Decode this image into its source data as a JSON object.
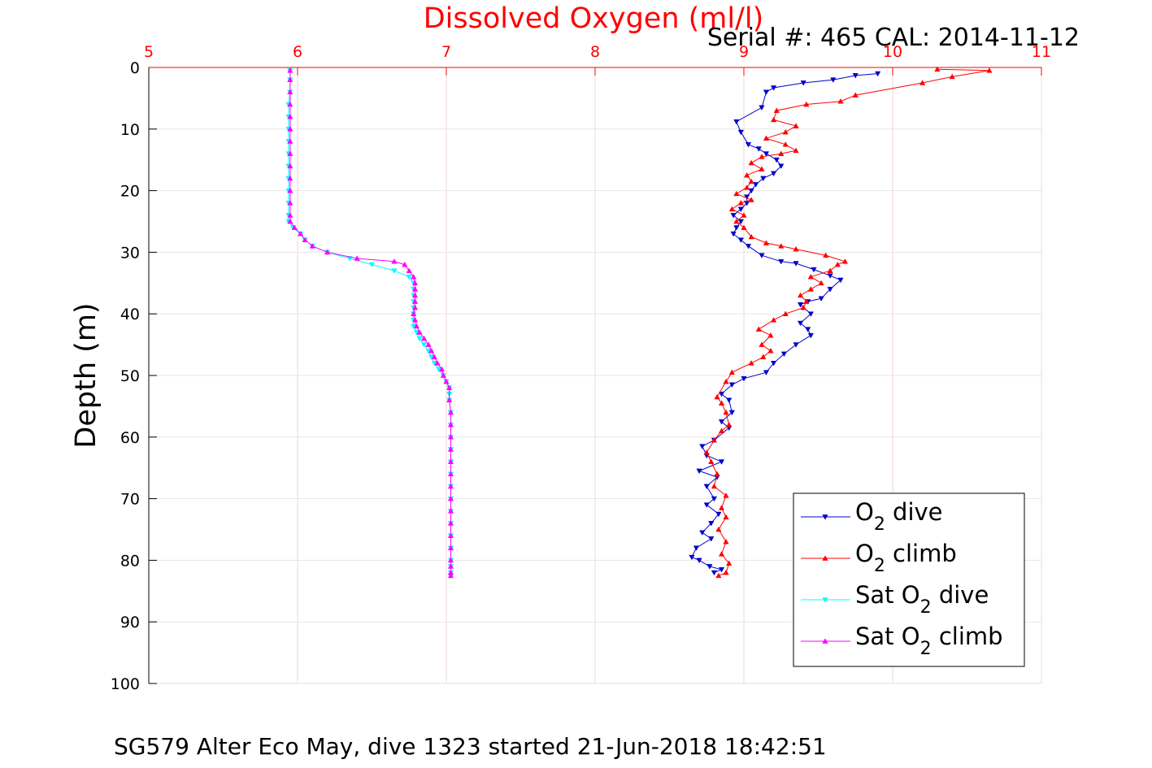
{
  "chart_data": {
    "type": "line",
    "title": "Dissolved Oxygen (ml/l)",
    "subtitle": "Serial #: 465  CAL: 2014-11-12",
    "caption": "SG579 Alter Eco May, dive 1323 started 21-Jun-2018 18:42:51",
    "ylabel": "Depth (m)",
    "xlim": [
      5,
      11
    ],
    "ylim": [
      0,
      100
    ],
    "y_reversed": true,
    "x_axis_position": "top",
    "x_ticks": [
      "5",
      "6",
      "7",
      "8",
      "9",
      "10",
      "11"
    ],
    "y_ticks": [
      "0",
      "10",
      "20",
      "30",
      "40",
      "50",
      "60",
      "70",
      "80",
      "90",
      "100"
    ],
    "grid": true,
    "legend_position": "bottom-right",
    "colors": {
      "axis_x": "#ff0000",
      "title": "#ff0000",
      "grid": "#e6e6e6",
      "text": "#000000"
    },
    "series": [
      {
        "name": "O2 dive",
        "legend_main": "O",
        "legend_sub": "2",
        "legend_prefix": "",
        "legend_suffix": " dive",
        "color": "#0000cc",
        "marker": "down",
        "points": [
          [
            9.9,
            1
          ],
          [
            9.75,
            1.3
          ],
          [
            9.6,
            2
          ],
          [
            9.4,
            2.5
          ],
          [
            9.2,
            3.3
          ],
          [
            9.15,
            4
          ],
          [
            9.12,
            6.5
          ],
          [
            8.95,
            8.8
          ],
          [
            8.98,
            10.5
          ],
          [
            9.03,
            12.5
          ],
          [
            9.1,
            13.2
          ],
          [
            9.15,
            14
          ],
          [
            9.22,
            15
          ],
          [
            9.25,
            16
          ],
          [
            9.2,
            17.2
          ],
          [
            9.13,
            18
          ],
          [
            9.08,
            19
          ],
          [
            9.05,
            20
          ],
          [
            9.02,
            21
          ],
          [
            9.02,
            22
          ],
          [
            8.98,
            23
          ],
          [
            8.93,
            24
          ],
          [
            8.98,
            25
          ],
          [
            8.95,
            26
          ],
          [
            8.93,
            27
          ],
          [
            8.98,
            28
          ],
          [
            9.03,
            29
          ],
          [
            9.12,
            30.5
          ],
          [
            9.25,
            31.5
          ],
          [
            9.35,
            31.8
          ],
          [
            9.47,
            32.8
          ],
          [
            9.58,
            33.8
          ],
          [
            9.65,
            34.5
          ],
          [
            9.58,
            36
          ],
          [
            9.52,
            37.5
          ],
          [
            9.43,
            38
          ],
          [
            9.38,
            38.5
          ],
          [
            9.45,
            40
          ],
          [
            9.38,
            41.5
          ],
          [
            9.43,
            42.5
          ],
          [
            9.45,
            43.5
          ],
          [
            9.35,
            45
          ],
          [
            9.27,
            46.5
          ],
          [
            9.2,
            48
          ],
          [
            9.15,
            49.5
          ],
          [
            9.0,
            50.5
          ],
          [
            8.92,
            51.5
          ],
          [
            8.85,
            53
          ],
          [
            8.9,
            54
          ],
          [
            8.92,
            56
          ],
          [
            8.85,
            57.5
          ],
          [
            8.9,
            58.5
          ],
          [
            8.8,
            60.5
          ],
          [
            8.72,
            61.5
          ],
          [
            8.75,
            63
          ],
          [
            8.85,
            64
          ],
          [
            8.7,
            65.5
          ],
          [
            8.82,
            66.5
          ],
          [
            8.75,
            68
          ],
          [
            8.8,
            70
          ],
          [
            8.75,
            71
          ],
          [
            8.83,
            72.5
          ],
          [
            8.78,
            74
          ],
          [
            8.72,
            75.5
          ],
          [
            8.78,
            76.5
          ],
          [
            8.68,
            78
          ],
          [
            8.65,
            79.5
          ],
          [
            8.7,
            80
          ],
          [
            8.77,
            81
          ],
          [
            8.85,
            81.5
          ],
          [
            8.8,
            82
          ]
        ]
      },
      {
        "name": "O2 climb",
        "legend_main": "O",
        "legend_sub": "2",
        "legend_prefix": "",
        "legend_suffix": " climb",
        "color": "#ff0000",
        "marker": "up",
        "points": [
          [
            8.83,
            82.5
          ],
          [
            8.88,
            82
          ],
          [
            8.9,
            80.5
          ],
          [
            8.85,
            79
          ],
          [
            8.88,
            77
          ],
          [
            8.83,
            75
          ],
          [
            8.88,
            73
          ],
          [
            8.85,
            71.5
          ],
          [
            8.88,
            69.5
          ],
          [
            8.8,
            68
          ],
          [
            8.82,
            66
          ],
          [
            8.78,
            64
          ],
          [
            8.75,
            62.5
          ],
          [
            8.8,
            60.5
          ],
          [
            8.85,
            59
          ],
          [
            8.9,
            58
          ],
          [
            8.88,
            56
          ],
          [
            8.85,
            54.5
          ],
          [
            8.82,
            53.5
          ],
          [
            8.88,
            51
          ],
          [
            8.92,
            49.5
          ],
          [
            9.05,
            48
          ],
          [
            9.13,
            47
          ],
          [
            9.18,
            46
          ],
          [
            9.12,
            45
          ],
          [
            9.18,
            43.5
          ],
          [
            9.1,
            42.5
          ],
          [
            9.2,
            41
          ],
          [
            9.28,
            40
          ],
          [
            9.4,
            39
          ],
          [
            9.42,
            38
          ],
          [
            9.38,
            37
          ],
          [
            9.45,
            36
          ],
          [
            9.52,
            35
          ],
          [
            9.45,
            34
          ],
          [
            9.58,
            33
          ],
          [
            9.63,
            32
          ],
          [
            9.68,
            31.5
          ],
          [
            9.55,
            30.5
          ],
          [
            9.35,
            29.5
          ],
          [
            9.25,
            29
          ],
          [
            9.15,
            28.5
          ],
          [
            9.05,
            27.5
          ],
          [
            9.0,
            26
          ],
          [
            8.95,
            25
          ],
          [
            9.0,
            24
          ],
          [
            8.92,
            23
          ],
          [
            8.98,
            22
          ],
          [
            9.05,
            21.5
          ],
          [
            8.95,
            20.5
          ],
          [
            9.02,
            19.5
          ],
          [
            9.05,
            18.5
          ],
          [
            9.02,
            17.5
          ],
          [
            9.12,
            16.5
          ],
          [
            9.05,
            15.5
          ],
          [
            9.12,
            14.5
          ],
          [
            9.25,
            14
          ],
          [
            9.35,
            13.5
          ],
          [
            9.28,
            12.5
          ],
          [
            9.15,
            11.5
          ],
          [
            9.28,
            10.5
          ],
          [
            9.35,
            9.5
          ],
          [
            9.2,
            8.5
          ],
          [
            9.22,
            7
          ],
          [
            9.42,
            6
          ],
          [
            9.65,
            5.5
          ],
          [
            9.75,
            4.5
          ],
          [
            10.2,
            2.5
          ],
          [
            10.4,
            1.5
          ],
          [
            10.65,
            0.5
          ],
          [
            10.3,
            0.3
          ]
        ]
      },
      {
        "name": "Sat O2 dive",
        "legend_main": "O",
        "legend_sub": "2",
        "legend_prefix": "Sat ",
        "legend_suffix": " dive",
        "color": "#00ffff",
        "marker": "down",
        "points": [
          [
            5.95,
            0.5
          ],
          [
            5.95,
            2
          ],
          [
            5.95,
            4
          ],
          [
            5.94,
            6
          ],
          [
            5.94,
            8
          ],
          [
            5.94,
            10
          ],
          [
            5.94,
            12
          ],
          [
            5.94,
            14
          ],
          [
            5.94,
            16
          ],
          [
            5.94,
            18
          ],
          [
            5.94,
            20
          ],
          [
            5.94,
            22
          ],
          [
            5.94,
            24
          ],
          [
            5.94,
            25
          ],
          [
            5.97,
            26
          ],
          [
            6.02,
            27
          ],
          [
            6.05,
            28
          ],
          [
            6.1,
            29
          ],
          [
            6.2,
            30
          ],
          [
            6.35,
            31
          ],
          [
            6.5,
            32
          ],
          [
            6.65,
            33
          ],
          [
            6.75,
            34
          ],
          [
            6.78,
            35
          ],
          [
            6.78,
            36
          ],
          [
            6.78,
            37
          ],
          [
            6.78,
            38
          ],
          [
            6.78,
            39
          ],
          [
            6.78,
            40
          ],
          [
            6.78,
            41
          ],
          [
            6.78,
            42
          ],
          [
            6.8,
            43
          ],
          [
            6.82,
            44
          ],
          [
            6.85,
            45
          ],
          [
            6.88,
            46
          ],
          [
            6.9,
            47
          ],
          [
            6.92,
            48
          ],
          [
            6.95,
            49
          ],
          [
            6.98,
            50
          ],
          [
            7.0,
            51
          ],
          [
            7.02,
            52
          ],
          [
            7.02,
            53
          ],
          [
            7.02,
            54
          ],
          [
            7.03,
            56
          ],
          [
            7.03,
            58
          ],
          [
            7.03,
            60
          ],
          [
            7.03,
            62
          ],
          [
            7.03,
            64
          ],
          [
            7.03,
            66
          ],
          [
            7.03,
            68
          ],
          [
            7.03,
            70
          ],
          [
            7.03,
            72
          ],
          [
            7.03,
            74
          ],
          [
            7.03,
            76
          ],
          [
            7.03,
            78
          ],
          [
            7.03,
            80
          ],
          [
            7.03,
            81
          ],
          [
            7.03,
            82
          ],
          [
            7.03,
            82.5
          ]
        ]
      },
      {
        "name": "Sat O2 climb",
        "legend_main": "O",
        "legend_sub": "2",
        "legend_prefix": "Sat ",
        "legend_suffix": " climb",
        "color": "#ff00ff",
        "marker": "up",
        "points": [
          [
            7.03,
            82.5
          ],
          [
            7.03,
            82
          ],
          [
            7.03,
            81
          ],
          [
            7.03,
            80
          ],
          [
            7.03,
            78
          ],
          [
            7.03,
            76
          ],
          [
            7.03,
            74
          ],
          [
            7.03,
            72
          ],
          [
            7.03,
            70
          ],
          [
            7.03,
            68
          ],
          [
            7.03,
            66
          ],
          [
            7.03,
            64
          ],
          [
            7.03,
            62
          ],
          [
            7.03,
            60
          ],
          [
            7.03,
            58
          ],
          [
            7.03,
            56
          ],
          [
            7.02,
            54
          ],
          [
            7.02,
            52
          ],
          [
            7.0,
            51
          ],
          [
            6.98,
            50
          ],
          [
            6.97,
            49
          ],
          [
            6.94,
            48
          ],
          [
            6.92,
            47
          ],
          [
            6.9,
            46
          ],
          [
            6.88,
            45
          ],
          [
            6.85,
            44
          ],
          [
            6.82,
            43
          ],
          [
            6.8,
            42
          ],
          [
            6.79,
            41
          ],
          [
            6.78,
            40
          ],
          [
            6.79,
            39
          ],
          [
            6.79,
            38
          ],
          [
            6.79,
            37
          ],
          [
            6.79,
            36
          ],
          [
            6.79,
            35
          ],
          [
            6.78,
            34
          ],
          [
            6.75,
            33
          ],
          [
            6.72,
            32
          ],
          [
            6.65,
            31.5
          ],
          [
            6.4,
            31
          ],
          [
            6.2,
            30
          ],
          [
            6.1,
            29
          ],
          [
            6.05,
            28
          ],
          [
            6.02,
            27
          ],
          [
            5.98,
            26
          ],
          [
            5.95,
            25
          ],
          [
            5.95,
            24
          ],
          [
            5.95,
            22
          ],
          [
            5.95,
            20
          ],
          [
            5.95,
            18
          ],
          [
            5.95,
            16
          ],
          [
            5.95,
            14
          ],
          [
            5.95,
            12
          ],
          [
            5.95,
            10
          ],
          [
            5.95,
            8
          ],
          [
            5.95,
            6
          ],
          [
            5.95,
            4
          ],
          [
            5.95,
            2
          ],
          [
            5.95,
            0.5
          ]
        ]
      }
    ]
  }
}
